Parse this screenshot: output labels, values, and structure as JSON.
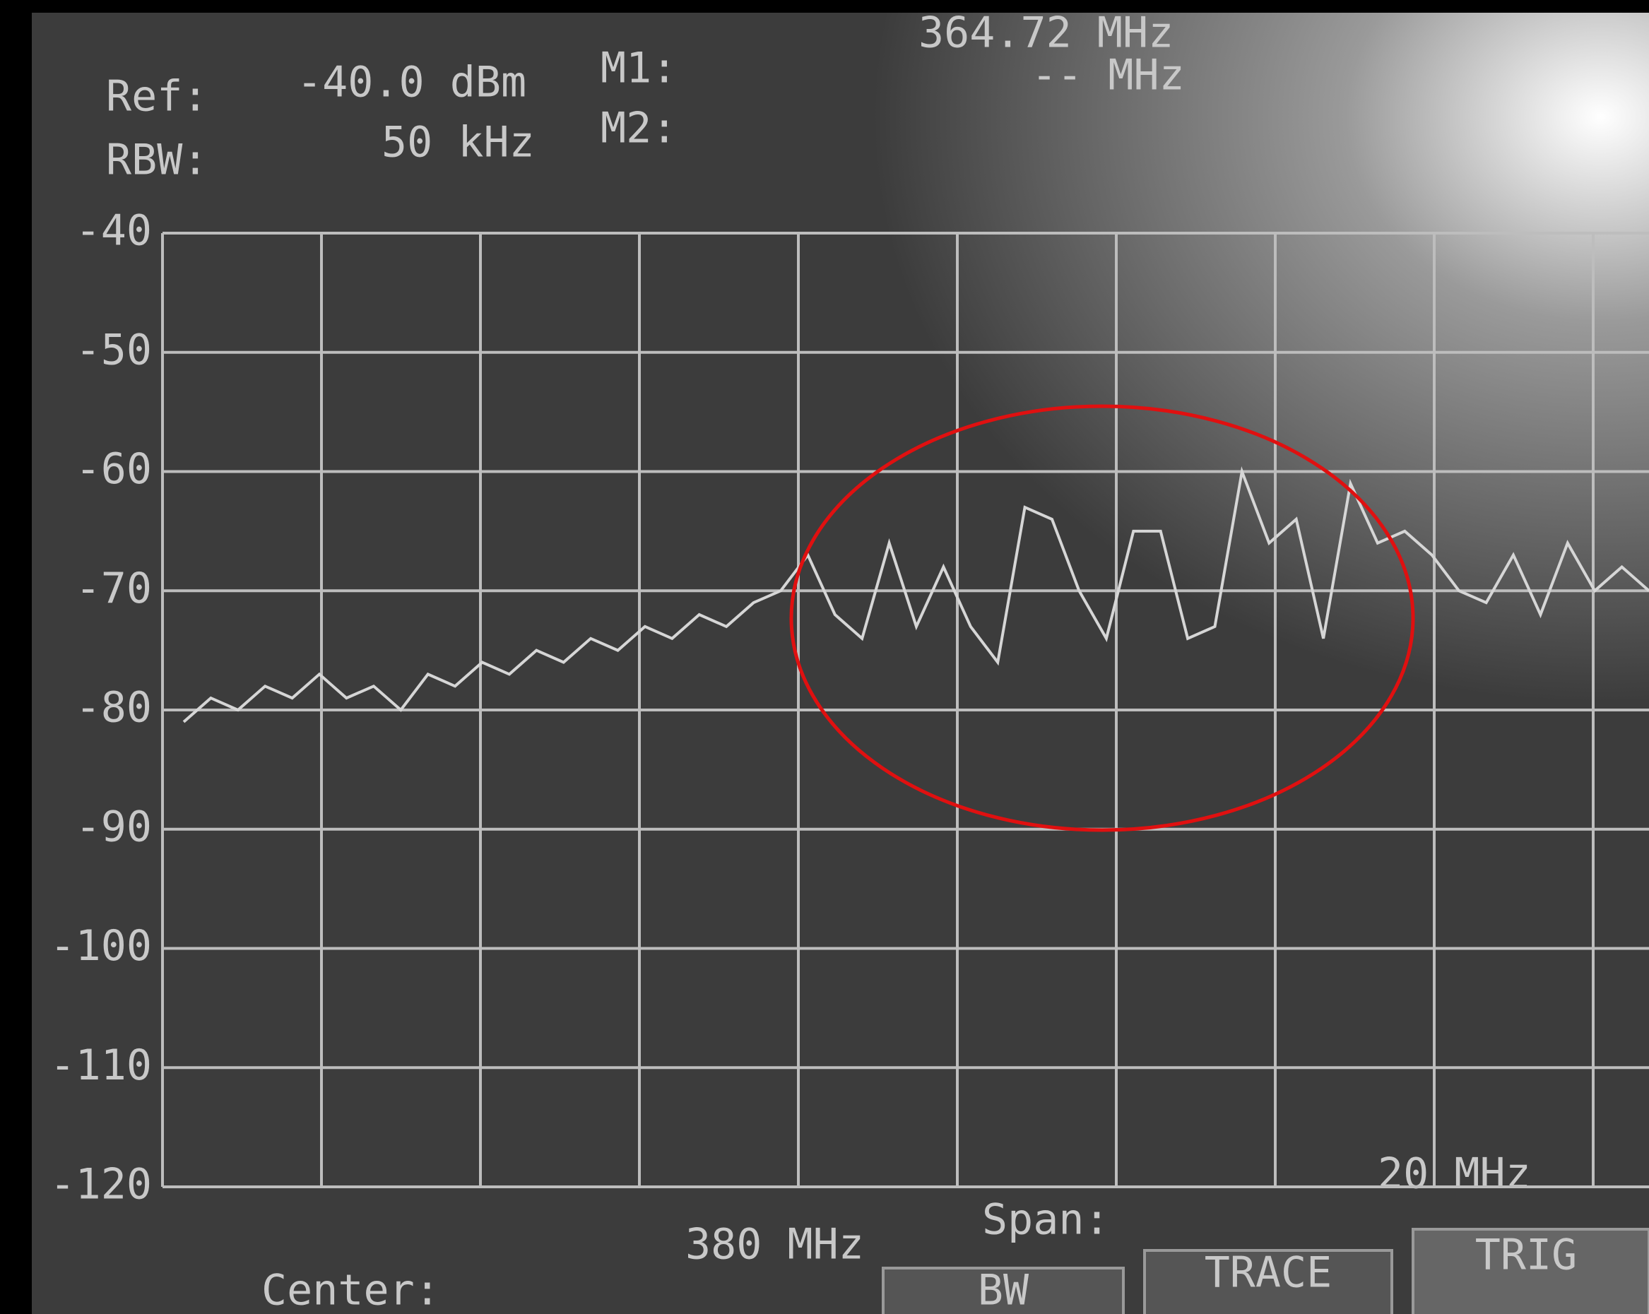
{
  "header": {
    "ref_label": "Ref:",
    "ref_value": "-40.0 dBm",
    "m1_label": "M1:",
    "m1_value": "364.72 MHz",
    "rbw_label": "RBW:",
    "rbw_value": "50 kHz",
    "m2_label": "M2:",
    "m2_value": "-- MHz"
  },
  "chart_data": {
    "type": "line",
    "values": [
      -81,
      -79,
      -80,
      -78,
      -79,
      -77,
      -79,
      -78,
      -80,
      -77,
      -78,
      -76,
      -77,
      -75,
      -76,
      -74,
      -75,
      -73,
      -74,
      -72,
      -73,
      -71,
      -70,
      -67,
      -72,
      -74,
      -66,
      -73,
      -68,
      -73,
      -76,
      -63,
      -64,
      -70,
      -74,
      -65,
      -65,
      -74,
      -73,
      -60,
      -66,
      -64,
      -74,
      -61,
      -66,
      -65,
      -67,
      -70,
      -71,
      -67,
      -72,
      -66,
      -70,
      -68,
      -70
    ],
    "color": "#d6d6d6",
    "ylim": [
      -120,
      -40
    ],
    "yticks": [
      -120,
      -110,
      -100,
      -90,
      -80,
      -70,
      -60,
      -50,
      -40
    ],
    "grid": true
  },
  "footer": {
    "center_label": "Center:",
    "center_value": "380 MHz",
    "span_label": "Span:",
    "span_value": "20 MHz"
  },
  "softkeys": [
    "BW",
    "TRACE",
    "TRIG"
  ]
}
